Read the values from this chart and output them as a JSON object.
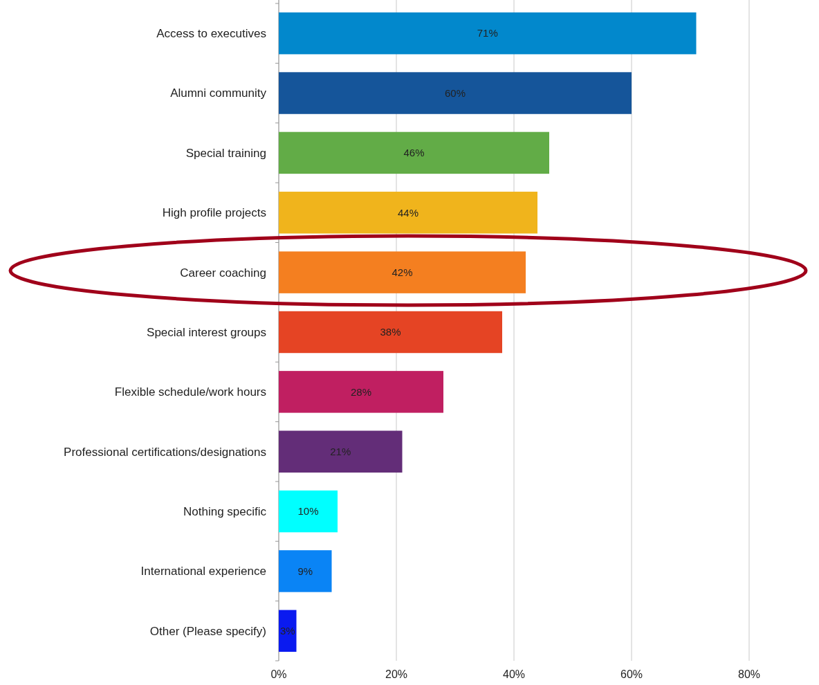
{
  "chart_data": {
    "type": "bar",
    "orientation": "horizontal",
    "categories": [
      "Access to executives",
      "Alumni community",
      "Special training",
      "High profile projects",
      "Career coaching",
      "Special interest groups",
      "Flexible schedule/work hours",
      "Professional certifications/designations",
      "Nothing specific",
      "International experience",
      "Other (Please specify)"
    ],
    "values": [
      71,
      60,
      46,
      44,
      42,
      38,
      28,
      21,
      10,
      9,
      3
    ],
    "value_labels": [
      "71%",
      "60%",
      "46%",
      "44%",
      "42%",
      "38%",
      "28%",
      "21%",
      "10%",
      "9%",
      "3%"
    ],
    "colors": [
      "#0288cc",
      "#15559a",
      "#62ac47",
      "#f0b41c",
      "#f47f20",
      "#e54424",
      "#c01f61",
      "#632d78",
      "#00ffff",
      "#0a84f5",
      "#0a1af0"
    ],
    "xlim": [
      0,
      80
    ],
    "xticks": [
      {
        "value": 0,
        "label": "0%"
      },
      {
        "value": 20,
        "label": "20%"
      },
      {
        "value": 40,
        "label": "40%"
      },
      {
        "value": 60,
        "label": "60%"
      },
      {
        "value": 80,
        "label": "80%"
      }
    ],
    "grid": "x"
  }
}
